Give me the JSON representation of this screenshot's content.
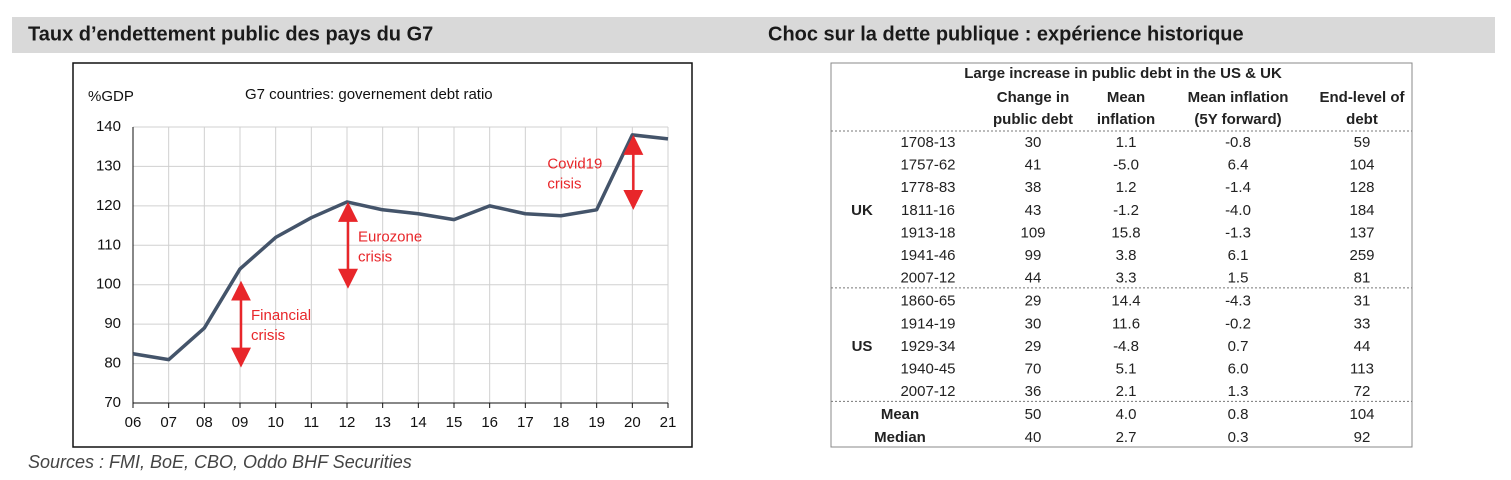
{
  "headings": {
    "left": "Taux d’endettement public des pays du G7",
    "right": "Choc sur la dette publique : expérience historique"
  },
  "chart_data": {
    "type": "line",
    "title": "G7 countries: governement debt ratio",
    "y_label": "%GDP",
    "categories": [
      "06",
      "07",
      "08",
      "09",
      "10",
      "11",
      "12",
      "13",
      "14",
      "15",
      "16",
      "17",
      "18",
      "19",
      "20",
      "21"
    ],
    "values": [
      82.5,
      81,
      89,
      104,
      112,
      117,
      121,
      119,
      118,
      116.5,
      120,
      118,
      117.5,
      119,
      138,
      137
    ],
    "color": "#44546a",
    "ylim": [
      70,
      140
    ],
    "yticks": [
      70,
      80,
      90,
      100,
      110,
      120,
      130,
      140
    ],
    "grid": true,
    "annotations": [
      {
        "lines": [
          "Financial",
          "crisis"
        ],
        "x": "09",
        "range": [
          80,
          100
        ],
        "color": "#e8262a"
      },
      {
        "lines": [
          "Eurozone",
          "crisis"
        ],
        "x": "12",
        "range": [
          100,
          120
        ],
        "color": "#e8262a"
      },
      {
        "lines": [
          "Covid19",
          "crisis"
        ],
        "x": "20",
        "range": [
          120,
          137
        ],
        "color": "#e8262a"
      }
    ]
  },
  "sources": "Sources : FMI, BoE, CBO, Oddo BHF Securities",
  "table": {
    "title": "Large increase in public debt in the US & UK",
    "columns": [
      [
        "Change in",
        "public debt"
      ],
      [
        "Mean",
        "inflation"
      ],
      [
        "Mean inflation",
        "(5Y forward)"
      ],
      [
        "End-level of",
        "debt"
      ]
    ],
    "groups": [
      {
        "label": "UK",
        "rows": [
          [
            "1708-13",
            "30",
            "1.1",
            "-0.8",
            "59"
          ],
          [
            "1757-62",
            "41",
            "-5.0",
            "6.4",
            "104"
          ],
          [
            "1778-83",
            "38",
            "1.2",
            "-1.4",
            "128"
          ],
          [
            "1811-16",
            "43",
            "-1.2",
            "-4.0",
            "184"
          ],
          [
            "1913-18",
            "109",
            "15.8",
            "-1.3",
            "137"
          ],
          [
            "1941-46",
            "99",
            "3.8",
            "6.1",
            "259"
          ],
          [
            "2007-12",
            "44",
            "3.3",
            "1.5",
            "81"
          ]
        ]
      },
      {
        "label": "US",
        "rows": [
          [
            "1860-65",
            "29",
            "14.4",
            "-4.3",
            "31"
          ],
          [
            "1914-19",
            "30",
            "11.6",
            "-0.2",
            "33"
          ],
          [
            "1929-34",
            "29",
            "-4.8",
            "0.7",
            "44"
          ],
          [
            "1940-45",
            "70",
            "5.1",
            "6.0",
            "113"
          ],
          [
            "2007-12",
            "36",
            "2.1",
            "1.3",
            "72"
          ]
        ]
      }
    ],
    "summary": [
      [
        "Mean",
        "50",
        "4.0",
        "0.8",
        "104"
      ],
      [
        "Median",
        "40",
        "2.7",
        "0.3",
        "92"
      ]
    ]
  }
}
